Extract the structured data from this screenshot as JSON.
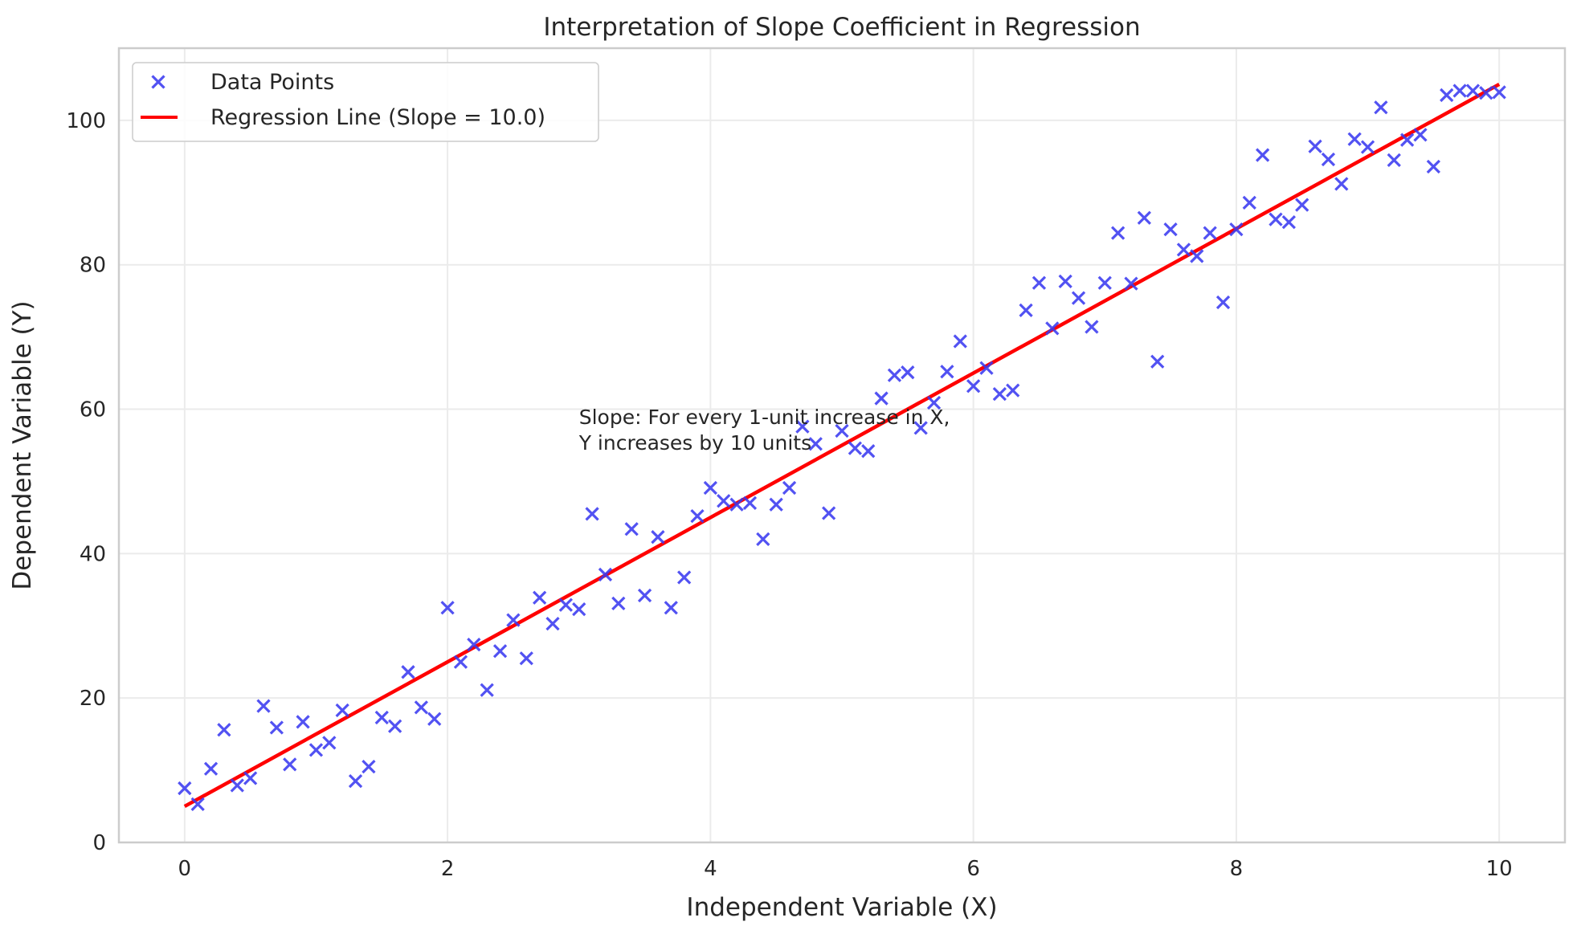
{
  "chart_data": {
    "type": "scatter",
    "title": "Interpretation of Slope Coefficient in Regression",
    "xlabel": "Independent Variable (X)",
    "ylabel": "Dependent Variable (Y)",
    "xlim": [
      -0.5,
      10.5
    ],
    "ylim": [
      0,
      110
    ],
    "xticks": [
      0,
      2,
      4,
      6,
      8,
      10
    ],
    "yticks": [
      0,
      20,
      40,
      60,
      80,
      100
    ],
    "grid": true,
    "legend_position": "upper-left",
    "colors": {
      "points": "#3a3af0",
      "line": "#ff0000",
      "grid": "#ebebeb",
      "spine": "#cccccc",
      "text": "#262626"
    },
    "series": [
      {
        "name": "Data Points",
        "type": "scatter",
        "marker": "x",
        "points": [
          [
            0.0,
            7.5
          ],
          [
            0.1,
            5.3
          ],
          [
            0.2,
            10.2
          ],
          [
            0.3,
            15.6
          ],
          [
            0.4,
            7.9
          ],
          [
            0.5,
            8.9
          ],
          [
            0.6,
            18.9
          ],
          [
            0.7,
            15.9
          ],
          [
            0.8,
            10.8
          ],
          [
            0.9,
            16.7
          ],
          [
            1.0,
            12.8
          ],
          [
            1.1,
            13.8
          ],
          [
            1.2,
            18.3
          ],
          [
            1.3,
            8.5
          ],
          [
            1.4,
            10.5
          ],
          [
            1.5,
            17.3
          ],
          [
            1.6,
            16.1
          ],
          [
            1.7,
            23.6
          ],
          [
            1.8,
            18.7
          ],
          [
            1.9,
            17.1
          ],
          [
            2.0,
            32.5
          ],
          [
            2.1,
            25.0
          ],
          [
            2.2,
            27.4
          ],
          [
            2.3,
            21.1
          ],
          [
            2.4,
            26.5
          ],
          [
            2.5,
            30.8
          ],
          [
            2.6,
            25.5
          ],
          [
            2.7,
            33.9
          ],
          [
            2.8,
            30.3
          ],
          [
            2.9,
            32.9
          ],
          [
            3.0,
            32.3
          ],
          [
            3.1,
            45.5
          ],
          [
            3.2,
            37.1
          ],
          [
            3.3,
            33.1
          ],
          [
            3.4,
            43.4
          ],
          [
            3.5,
            34.2
          ],
          [
            3.6,
            42.3
          ],
          [
            3.7,
            32.5
          ],
          [
            3.8,
            36.7
          ],
          [
            3.9,
            45.2
          ],
          [
            4.0,
            49.1
          ],
          [
            4.1,
            47.3
          ],
          [
            4.2,
            46.8
          ],
          [
            4.3,
            47.0
          ],
          [
            4.4,
            42.0
          ],
          [
            4.5,
            46.8
          ],
          [
            4.6,
            49.1
          ],
          [
            4.7,
            57.6
          ],
          [
            4.8,
            55.2
          ],
          [
            4.9,
            45.6
          ],
          [
            5.0,
            57.0
          ],
          [
            5.1,
            54.6
          ],
          [
            5.2,
            54.2
          ],
          [
            5.3,
            61.5
          ],
          [
            5.4,
            64.7
          ],
          [
            5.5,
            65.1
          ],
          [
            5.6,
            57.4
          ],
          [
            5.7,
            60.9
          ],
          [
            5.8,
            65.2
          ],
          [
            5.9,
            69.4
          ],
          [
            6.0,
            63.2
          ],
          [
            6.1,
            65.7
          ],
          [
            6.2,
            62.1
          ],
          [
            6.3,
            62.6
          ],
          [
            6.4,
            73.7
          ],
          [
            6.5,
            77.5
          ],
          [
            6.6,
            71.2
          ],
          [
            6.7,
            77.7
          ],
          [
            6.8,
            75.4
          ],
          [
            6.9,
            71.4
          ],
          [
            7.0,
            77.5
          ],
          [
            7.1,
            84.4
          ],
          [
            7.2,
            77.4
          ],
          [
            7.3,
            86.5
          ],
          [
            7.4,
            66.6
          ],
          [
            7.5,
            84.9
          ],
          [
            7.6,
            82.1
          ],
          [
            7.7,
            81.2
          ],
          [
            7.8,
            84.4
          ],
          [
            7.9,
            74.8
          ],
          [
            8.0,
            84.9
          ],
          [
            8.1,
            88.6
          ],
          [
            8.2,
            95.2
          ],
          [
            8.3,
            86.3
          ],
          [
            8.4,
            85.9
          ],
          [
            8.5,
            88.3
          ],
          [
            8.6,
            96.4
          ],
          [
            8.7,
            94.6
          ],
          [
            8.8,
            91.2
          ],
          [
            8.9,
            97.4
          ],
          [
            9.0,
            96.3
          ],
          [
            9.1,
            101.8
          ],
          [
            9.2,
            94.5
          ],
          [
            9.3,
            97.3
          ],
          [
            9.4,
            98.0
          ],
          [
            9.5,
            93.6
          ],
          [
            9.6,
            103.5
          ],
          [
            9.7,
            104.1
          ],
          [
            9.8,
            104.1
          ],
          [
            9.9,
            103.8
          ],
          [
            10.0,
            103.9
          ]
        ]
      },
      {
        "name": "Regression Line (Slope = 10.0)",
        "type": "line",
        "x": [
          0,
          10
        ],
        "y": [
          5,
          105
        ]
      }
    ],
    "annotation": {
      "lines": [
        "Slope: For every 1-unit increase in X,",
        "Y increases by 10 units"
      ],
      "x": 3.0,
      "y": 55.5
    }
  }
}
